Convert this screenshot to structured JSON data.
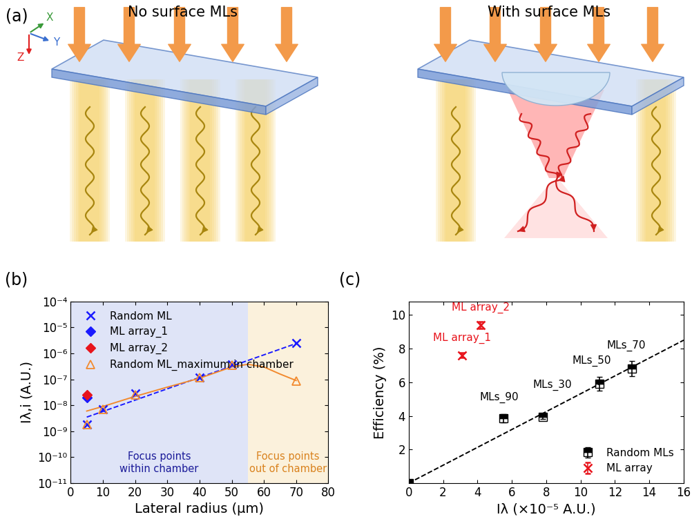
{
  "diagram": {
    "panel": "(a)",
    "axis_labels": [
      "X",
      "Y",
      "Z"
    ],
    "panels": [
      {
        "title": "No surface MLs"
      },
      {
        "title": "With surface MLs"
      }
    ]
  },
  "chart_data": [
    {
      "panel": "(b)",
      "type": "scatter",
      "x_label": "Lateral radius (μm)",
      "y_label": "Iλ,i (A.U.)",
      "log": "y",
      "legend": "upper left",
      "xlim": [
        0,
        80
      ],
      "xticks": [
        0,
        10,
        20,
        30,
        40,
        50,
        60,
        70,
        80
      ],
      "ylim": [
        1e-11,
        0.0001
      ],
      "yticks": [
        {
          "value": 1e-11,
          "label": "10⁻¹¹"
        },
        {
          "value": 1e-10,
          "label": "10⁻¹⁰"
        },
        {
          "value": 1e-09,
          "label": "10⁻⁹"
        },
        {
          "value": 1e-08,
          "label": "10⁻⁸"
        },
        {
          "value": 1e-07,
          "label": "10⁻⁷"
        },
        {
          "value": 1e-06,
          "label": "10⁻⁶"
        },
        {
          "value": 1e-05,
          "label": "10⁻⁵"
        },
        {
          "value": 0.0001,
          "label": "10⁻⁴"
        }
      ],
      "regions": [
        {
          "x": [
            0,
            55
          ],
          "color": "#dfe4f7",
          "label": "Focus points\nwithin chamber"
        },
        {
          "x": [
            55,
            80
          ],
          "color": "#fbf1dc",
          "label": "Focus points\nout of chamber"
        }
      ],
      "series": [
        {
          "type": "line",
          "line_style": "dashed",
          "color": "#1a1aff",
          "x": [
            5,
            70
          ],
          "values": [
            3.5e-09,
            2.4e-06
          ]
        },
        {
          "type": "line",
          "line_style": "solid",
          "color": "#f28a2e",
          "x": [
            5,
            10,
            20,
            30,
            40,
            50,
            55,
            60,
            65,
            70
          ],
          "values": [
            6e-09,
            9e-09,
            2.2e-08,
            5e-08,
            1.1e-07,
            3e-07,
            3.8e-07,
            3e-07,
            1.6e-07,
            9e-08
          ]
        },
        {
          "name": "Random ML",
          "type": "scatter",
          "marker": "x",
          "color": "#1a1aff",
          "x": [
            5,
            10,
            20,
            40,
            50,
            70
          ],
          "values": [
            1.8e-09,
            7.2e-09,
            2.8e-08,
            1.2e-07,
            3.7e-07,
            2.5e-06
          ]
        },
        {
          "name": "ML array_1",
          "type": "scatter",
          "marker": "diamond",
          "color": "#1a1aff",
          "x": [
            5
          ],
          "values": [
            2e-08
          ]
        },
        {
          "name": "ML array_2",
          "type": "scatter",
          "marker": "diamond",
          "color": "#e8141c",
          "x": [
            5
          ],
          "values": [
            2.6e-08
          ]
        },
        {
          "name": "Random ML_maximum in chamber",
          "type": "scatter",
          "marker": "triangle_open",
          "color": "#f28a2e",
          "x": [
            5,
            10,
            20,
            40,
            50,
            70
          ],
          "values": [
            1.8e-09,
            7e-09,
            2.6e-08,
            1.15e-07,
            3.6e-07,
            8.8e-08
          ]
        }
      ]
    },
    {
      "panel": "(c)",
      "type": "scatter",
      "x_label": "Iλ (×10⁻⁵ A.U.)",
      "y_label": "Efficiency (%)",
      "legend": "lower right",
      "xlim": [
        0,
        16
      ],
      "xticks": [
        0,
        2,
        4,
        6,
        8,
        10,
        12,
        14,
        16
      ],
      "ylim": [
        0,
        10.8
      ],
      "yticks": [
        2,
        4,
        6,
        8,
        10
      ],
      "series": [
        {
          "type": "line",
          "line_style": "dashed",
          "color": "#000000",
          "x": [
            0,
            16
          ],
          "values": [
            0,
            8.5
          ]
        },
        {
          "name": "Random MLs",
          "type": "scatter",
          "marker": "square_half",
          "color": "#000000",
          "x": [
            0,
            5.5,
            7.8,
            11.1,
            13.0
          ],
          "values": [
            0,
            3.85,
            3.95,
            5.9,
            6.8
          ],
          "errors": [
            0,
            0.25,
            0.12,
            0.4,
            0.45
          ],
          "labels": [
            null,
            "MLs_90",
            "MLs_30",
            "MLs_50",
            "MLs_70"
          ]
        },
        {
          "name": "ML array",
          "type": "scatter",
          "marker": "x",
          "color": "#e8141c",
          "x": [
            3.1,
            4.2
          ],
          "values": [
            7.6,
            9.4
          ],
          "errors": [
            0.15,
            0.2
          ],
          "labels": [
            "ML array_1",
            "ML array_2"
          ]
        }
      ]
    }
  ]
}
